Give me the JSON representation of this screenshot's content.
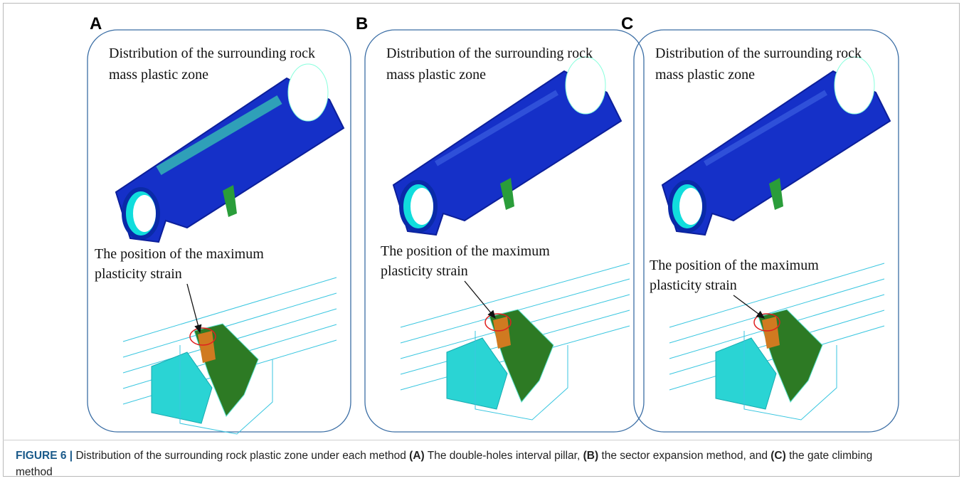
{
  "panels": [
    {
      "label": "A",
      "top_text": [
        "Distribution of the surrounding rock",
        "mass plastic zone"
      ],
      "bottom_text": [
        "The position of the maximum",
        "plasticity strain"
      ]
    },
    {
      "label": "B",
      "top_text": [
        "Distribution of the surrounding rock",
        "mass plastic zone"
      ],
      "bottom_text": [
        "The position of the maximum",
        "plasticity strain"
      ]
    },
    {
      "label": "C",
      "top_text": [
        "Distribution of the surrounding rock",
        "mass plastic zone"
      ],
      "bottom_text": [
        "The position of the maximum",
        "plasticity strain"
      ]
    }
  ],
  "caption": {
    "label": "FIGURE 6 |",
    "text": "Distribution of the surrounding rock plastic zone under each method",
    "items": [
      {
        "tag": "(A)",
        "text": "The double-holes interval pillar,"
      },
      {
        "tag": "(B)",
        "text": "the sector expansion method, and"
      },
      {
        "tag": "(C)",
        "text": "the gate climbing method"
      }
    ]
  }
}
